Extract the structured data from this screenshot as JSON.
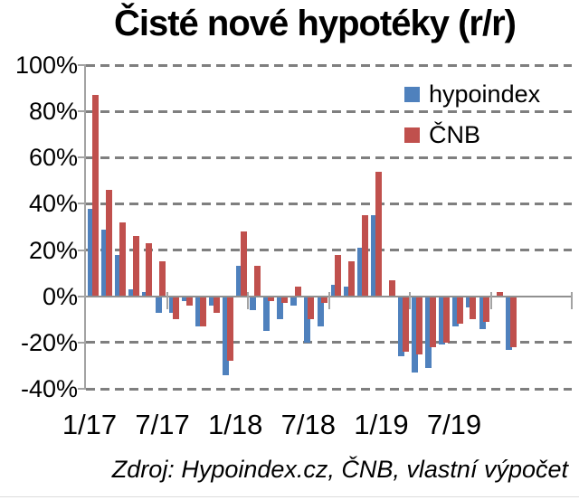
{
  "chart_data": {
    "type": "bar",
    "title": "Čisté nové hypotéky (r/r)",
    "source_note": "Zdroj: Hypoindex.cz, ČNB, vlastní výpočet",
    "categories": [
      "1/17",
      "2/17",
      "3/17",
      "4/17",
      "5/17",
      "6/17",
      "7/17",
      "8/17",
      "9/17",
      "10/17",
      "11/17",
      "12/17",
      "1/18",
      "2/18",
      "3/18",
      "4/18",
      "5/18",
      "6/18",
      "7/18",
      "8/18",
      "9/18",
      "10/18",
      "11/18",
      "12/18",
      "1/19",
      "2/19",
      "3/19",
      "4/19",
      "5/19",
      "6/19",
      "7/19",
      "8/19",
      "9/19",
      "10/19",
      "11/19",
      "12/19"
    ],
    "series": [
      {
        "name": "hypoindex",
        "color": "#4F81BD",
        "values": [
          38,
          29,
          18,
          3,
          2,
          -7,
          -7,
          -2,
          -13,
          -4,
          -34,
          13,
          -6,
          -15,
          -10,
          -4,
          -20,
          -13,
          5,
          4,
          21,
          35,
          0,
          -26,
          -33,
          -31,
          -21,
          -13,
          -5,
          -14,
          0,
          -23,
          null,
          null,
          null,
          null
        ]
      },
      {
        "name": "ČNB",
        "color": "#C0504D",
        "values": [
          87,
          46,
          32,
          26,
          23,
          15,
          -10,
          -4,
          -13,
          -7,
          -28,
          28,
          13,
          -2,
          -3,
          4,
          -10,
          -3,
          18,
          15,
          35,
          54,
          7,
          -24,
          -25,
          -22,
          -20,
          -12,
          -10,
          -11,
          2,
          -22,
          null,
          null,
          null,
          null
        ]
      }
    ],
    "ylim": [
      -40,
      100
    ],
    "ytick_step": 20,
    "ytick_labels": [
      "100%",
      "80%",
      "60%",
      "40%",
      "20%",
      "0%",
      "-20%",
      "-40%"
    ],
    "xtick_labels": [
      "1/17",
      "7/17",
      "1/18",
      "7/18",
      "1/19",
      "7/19"
    ],
    "grid": "horizontal-dashed",
    "legend_position": "top-right",
    "grid_color": "#7f7f7f",
    "axis_color": "#a3a3a3"
  }
}
